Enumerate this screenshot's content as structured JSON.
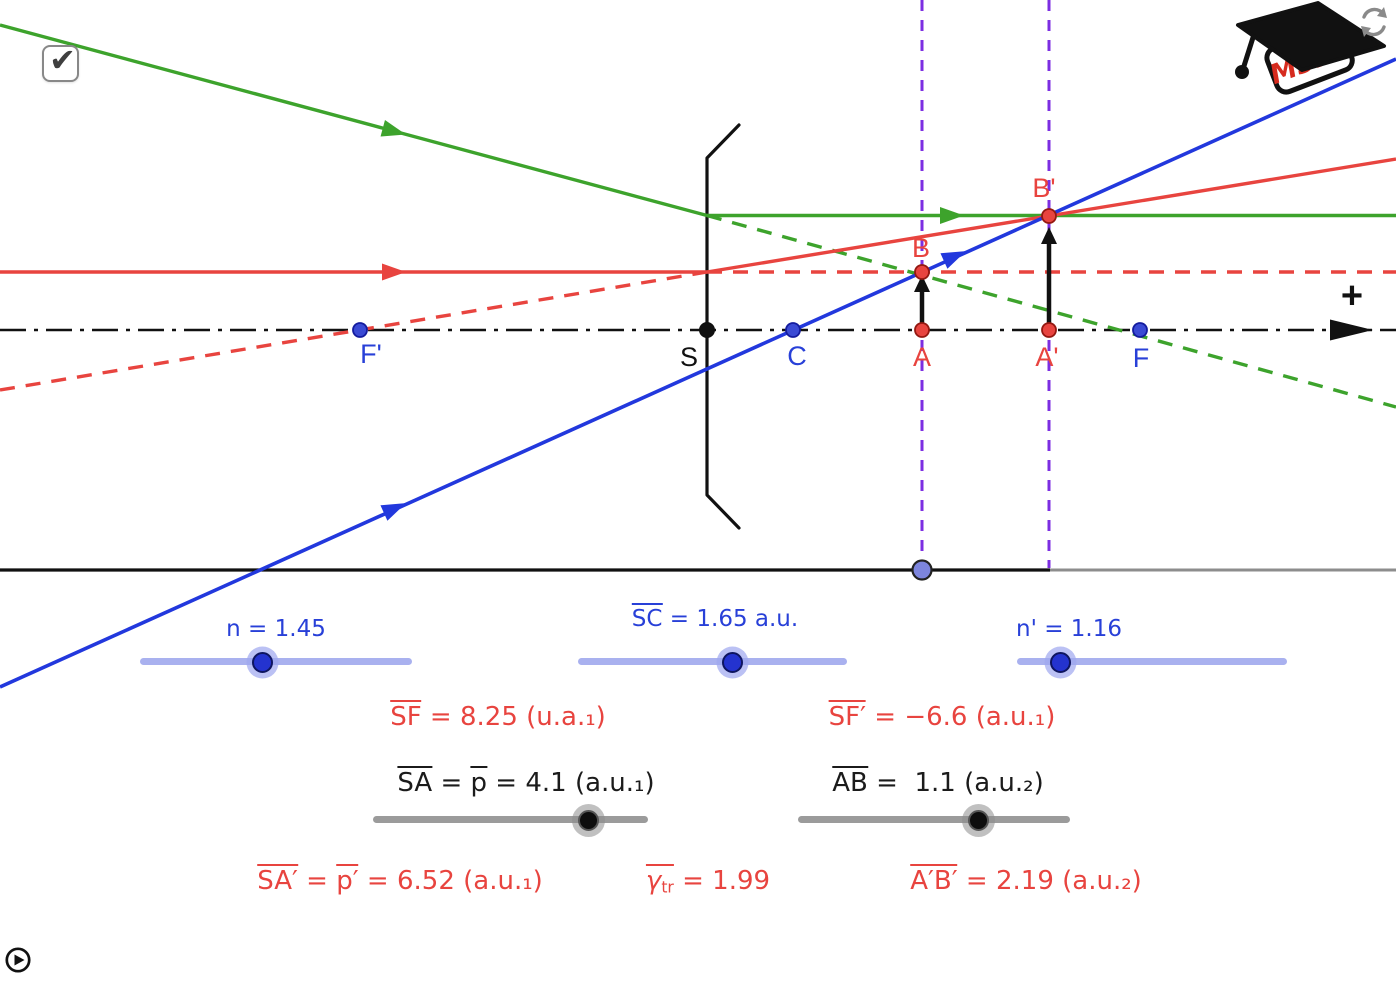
{
  "header": {
    "checkbox": {
      "checked": true,
      "checkmark": "✔"
    },
    "logo": {
      "text": "M3P2",
      "icon": "graduation-cap",
      "text_color": "#d62b1e"
    },
    "refresh_icon": "circular-arrows"
  },
  "diagram": {
    "colors": {
      "ray_green": "#3da32c",
      "ray_red": "#e8443f",
      "ray_blue": "#2238dd",
      "guide_purple": "#7c2ee2",
      "axis_black": "#111111"
    },
    "point_labels": {
      "F_prime": "F'",
      "S": "S",
      "C": "C",
      "A": "A",
      "A_prime": "A'",
      "F": "F",
      "B": "B",
      "B_prime": "B'"
    },
    "axis_plus_label": "+"
  },
  "controls": {
    "sliders": [
      {
        "id": "n",
        "value": "1.45",
        "color": "blue",
        "label": [
          {
            "parts": [
              {
                "t": "n = 1.45"
              }
            ]
          }
        ]
      },
      {
        "id": "SC",
        "value": "1.65",
        "unit": "a.u.",
        "color": "blue",
        "label": [
          {
            "over": true,
            "parts": [
              {
                "t": "SC"
              }
            ]
          },
          {
            "parts": [
              {
                "t": " = 1.65 a.u."
              }
            ]
          }
        ]
      },
      {
        "id": "n_prime",
        "value": "1.16",
        "color": "blue",
        "label": [
          {
            "parts": [
              {
                "t": "n' = 1.16"
              }
            ]
          }
        ]
      },
      {
        "id": "SA",
        "value": "4.1",
        "unit": "a.u.₁",
        "color": "gray",
        "label": [
          {
            "over": true,
            "parts": [
              {
                "t": "SA"
              }
            ]
          },
          {
            "parts": [
              {
                "t": " = "
              }
            ]
          },
          {
            "over": true,
            "parts": [
              {
                "t": "p"
              }
            ]
          },
          {
            "parts": [
              {
                "t": " = 4.1 (a.u.₁)"
              }
            ]
          }
        ]
      },
      {
        "id": "AB",
        "value": "1.1",
        "unit": "a.u.₂",
        "color": "gray",
        "label": [
          {
            "over": true,
            "parts": [
              {
                "t": "AB"
              }
            ]
          },
          {
            "parts": [
              {
                "t": " =  1.1 (a.u.₂)"
              }
            ]
          }
        ]
      }
    ],
    "readouts": [
      {
        "id": "SF",
        "value": "8.25",
        "unit": "u.a.₁",
        "color": "red",
        "segments": [
          {
            "over": true,
            "parts": [
              {
                "t": "SF"
              }
            ]
          },
          {
            "parts": [
              {
                "t": " = 8.25 (u.a.₁)"
              }
            ]
          }
        ]
      },
      {
        "id": "SF_prime",
        "value": "−6.6",
        "unit": "a.u.₁",
        "color": "red",
        "segments": [
          {
            "over": true,
            "parts": [
              {
                "t": "SF′"
              }
            ]
          },
          {
            "parts": [
              {
                "t": " = −6.6 (a.u.₁)"
              }
            ]
          }
        ]
      },
      {
        "id": "SA_prime",
        "value": "6.52",
        "unit": "a.u.₁",
        "color": "red",
        "segments": [
          {
            "over": true,
            "parts": [
              {
                "t": "SA′"
              }
            ]
          },
          {
            "parts": [
              {
                "t": " = "
              }
            ]
          },
          {
            "over": true,
            "parts": [
              {
                "t": "p′"
              }
            ]
          },
          {
            "parts": [
              {
                "t": " = 6.52 (a.u.₁)"
              }
            ]
          }
        ]
      },
      {
        "id": "gamma_tr",
        "value": "1.99",
        "color": "red",
        "segments": [
          {
            "over": true,
            "parts": [
              {
                "t": "γ",
                "i": true
              },
              {
                "t": "tr",
                "sub": true
              }
            ]
          },
          {
            "parts": [
              {
                "t": " = 1.99"
              }
            ]
          }
        ]
      },
      {
        "id": "A_prime_B_prime",
        "value": "2.19",
        "unit": "a.u.₂",
        "color": "red",
        "segments": [
          {
            "over": true,
            "parts": [
              {
                "t": "A′B′"
              }
            ]
          },
          {
            "parts": [
              {
                "t": " = 2.19 (a.u.₂)"
              }
            ]
          }
        ]
      }
    ]
  },
  "footer": {
    "play_button": "play"
  }
}
